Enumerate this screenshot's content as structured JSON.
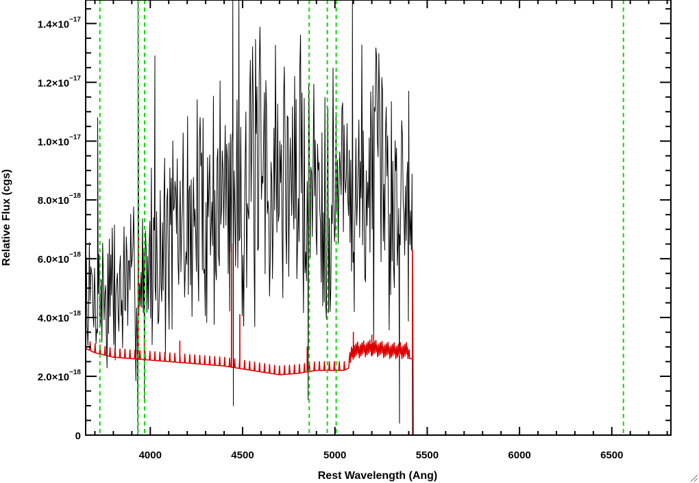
{
  "chart_data": {
    "type": "line",
    "title": "",
    "xlabel": "Rest Wavelength (Ang)",
    "ylabel": "Relative Flux (cgs)",
    "xlim": [
      3650,
      6820
    ],
    "ylim": [
      0,
      1.48e-17
    ],
    "grid": false,
    "x_ticks": [
      {
        "value": 4000,
        "label": "4000"
      },
      {
        "value": 4500,
        "label": "4500"
      },
      {
        "value": 5000,
        "label": "5000"
      },
      {
        "value": 5500,
        "label": "5500"
      },
      {
        "value": 6000,
        "label": "6000"
      },
      {
        "value": 6500,
        "label": "6500"
      }
    ],
    "y_ticks": [
      {
        "value": 0,
        "mantissa": "0",
        "exponent": ""
      },
      {
        "value": 2e-18,
        "mantissa": "2.0×10",
        "exponent": "−18"
      },
      {
        "value": 4e-18,
        "mantissa": "4.0×10",
        "exponent": "−18"
      },
      {
        "value": 6e-18,
        "mantissa": "6.0×10",
        "exponent": "−18"
      },
      {
        "value": 8e-18,
        "mantissa": "8.0×10",
        "exponent": "−18"
      },
      {
        "value": 1e-17,
        "mantissa": "1.0×10",
        "exponent": "−17"
      },
      {
        "value": 1.2e-17,
        "mantissa": "1.2×10",
        "exponent": "−17"
      },
      {
        "value": 1.4e-17,
        "mantissa": "1.4×10",
        "exponent": "−17"
      }
    ],
    "reference_lines": {
      "color": "#00dd00",
      "style": "dashed",
      "x": [
        3727,
        3934,
        3969,
        4861,
        4959,
        5007,
        6563
      ]
    },
    "series": [
      {
        "color": "#000000",
        "noise_seed": 7,
        "step": 4,
        "continuum": {
          "x": [
            3650,
            3700,
            3800,
            3900,
            4000,
            4100,
            4200,
            4300,
            4400,
            4500,
            4600,
            4700,
            4800,
            4900,
            5000,
            5100,
            5200,
            5300,
            5350,
            5420
          ],
          "y": [
            4.6e-18,
            4.7e-18,
            4.8e-18,
            5e-18,
            5.9e-18,
            6.6e-18,
            7.2e-18,
            7.7e-18,
            8.2e-18,
            8.5e-18,
            8.7e-18,
            8.8e-18,
            8.7e-18,
            8.6e-18,
            8.5e-18,
            8.5e-18,
            8.5e-18,
            8.3e-18,
            8e-18,
            7.8e-18
          ]
        },
        "spikes": [
          {
            "x": 3715,
            "y": 1.08e-17
          },
          {
            "x": 3932,
            "y": 0
          },
          {
            "x": 3935,
            "y": 1.48e-17
          },
          {
            "x": 3968,
            "y": 1.1e-18
          },
          {
            "x": 4025,
            "y": 1.29e-17
          },
          {
            "x": 4447,
            "y": 1.48e-17
          },
          {
            "x": 4450,
            "y": 1e-18
          },
          {
            "x": 4480,
            "y": 1.48e-17
          },
          {
            "x": 4855,
            "y": 1.2e-18
          },
          {
            "x": 5095,
            "y": 1.48e-17
          },
          {
            "x": 5105,
            "y": 4.2e-18
          },
          {
            "x": 5350,
            "y": 4e-19
          },
          {
            "x": 5400,
            "y": 1.17e-17
          }
        ],
        "end_x": 5420,
        "end_y": 0
      },
      {
        "color": "#dd0000",
        "continuum": {
          "x": [
            3650,
            3700,
            3800,
            3900,
            4000,
            4100,
            4200,
            4300,
            4400,
            4450,
            4500,
            4600,
            4700,
            4800,
            4900,
            5000,
            5050,
            5080,
            5100,
            5200,
            5300,
            5420
          ],
          "y": [
            2.95e-18,
            2.8e-18,
            2.65e-18,
            2.6e-18,
            2.55e-18,
            2.5e-18,
            2.45e-18,
            2.4e-18,
            2.35e-18,
            2.3e-18,
            2.25e-18,
            2.15e-18,
            2.05e-18,
            2.1e-18,
            2.2e-18,
            2.2e-18,
            2.2e-18,
            2.3e-18,
            2.6e-18,
            2.7e-18,
            2.6e-18,
            2.6e-18
          ]
        },
        "spikes": [
          {
            "x": 3935,
            "y": 6.8e-18
          },
          {
            "x": 3968,
            "y": 3.3e-18
          },
          {
            "x": 4160,
            "y": 3.2e-18
          },
          {
            "x": 4440,
            "y": 6.5e-18
          },
          {
            "x": 4485,
            "y": 4.1e-18
          },
          {
            "x": 4850,
            "y": 3e-18
          },
          {
            "x": 5100,
            "y": 3.5e-18
          },
          {
            "x": 5200,
            "y": 3.4e-18
          }
        ],
        "end_x": 5420,
        "end_y": 0,
        "tail": {
          "x": [
            5420,
            5425,
            6820
          ],
          "y": [
            6.3e-18,
            0,
            0
          ]
        }
      }
    ]
  }
}
